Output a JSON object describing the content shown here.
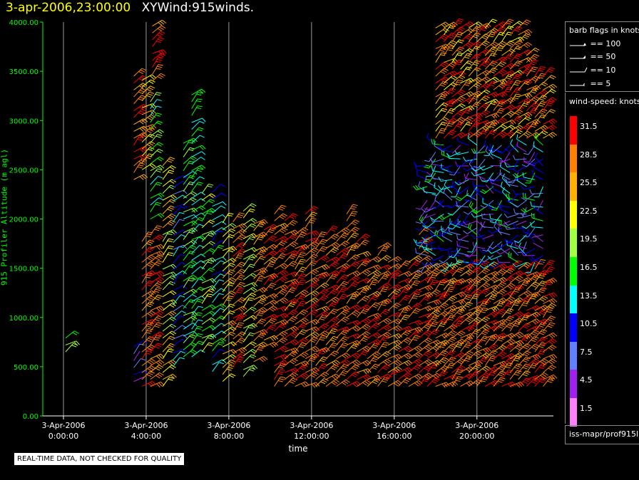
{
  "header": {
    "timestamp": "3-apr-2006,23:00:00",
    "name": "XYWind:915winds."
  },
  "chart_data": {
    "type": "scatter",
    "subtype": "wind-barb time-height",
    "ylabel": "915 Profiler Altitude (m agl)",
    "xlabel": "time",
    "ylim": [
      0,
      4000
    ],
    "y_ticks": [
      "0.00",
      "500.00",
      "1000.00",
      "1500.00",
      "2000.00",
      "2500.00",
      "3000.00",
      "3500.00",
      "4000.00"
    ],
    "x_ticks": [
      {
        "line1": "3-Apr-2006",
        "line2": "0:00:00",
        "hour": 0
      },
      {
        "line1": "3-Apr-2006",
        "line2": "4:00:00",
        "hour": 4
      },
      {
        "line1": "3-Apr-2006",
        "line2": "8:00:00",
        "hour": 8
      },
      {
        "line1": "3-Apr-2006",
        "line2": "12:00:00",
        "hour": 12
      },
      {
        "line1": "3-Apr-2006",
        "line2": "16:00:00",
        "hour": 16
      },
      {
        "line1": "3-Apr-2006",
        "line2": "20:00:00",
        "hour": 20
      }
    ],
    "xlim_hours": [
      -1,
      23.7
    ],
    "grid_vertical": true,
    "observation_profiles": [
      {
        "hour": 0.1,
        "range": [
          650,
          800
        ],
        "speed": 22
      },
      {
        "hour": 3.4,
        "range": [
          350,
          700
        ],
        "speed": 10
      },
      {
        "hour": 3.4,
        "range": [
          2400,
          3450
        ],
        "speed": 32
      },
      {
        "hour": 3.8,
        "range": [
          300,
          1800
        ],
        "speed": 32
      },
      {
        "hour": 3.8,
        "range": [
          2500,
          3450
        ],
        "speed": 28
      },
      {
        "hour": 4.2,
        "range": [
          300,
          1900
        ],
        "speed": 32
      },
      {
        "hour": 4.2,
        "range": [
          2000,
          3200
        ],
        "speed": 20
      },
      {
        "hour": 4.3,
        "range": [
          3400,
          4000
        ],
        "speed": 32
      },
      {
        "hour": 4.8,
        "range": [
          300,
          2600
        ],
        "speed": 26
      },
      {
        "hour": 5.3,
        "range": [
          500,
          2400
        ],
        "speed": 14
      },
      {
        "hour": 5.8,
        "range": [
          600,
          2800
        ],
        "speed": 20
      },
      {
        "hour": 6.2,
        "range": [
          600,
          3300
        ],
        "speed": 18
      },
      {
        "hour": 6.7,
        "range": [
          650,
          2300
        ],
        "speed": 22
      },
      {
        "hour": 7.2,
        "range": [
          450,
          2300
        ],
        "speed": 16
      },
      {
        "hour": 7.7,
        "range": [
          350,
          2000
        ],
        "speed": 26
      },
      {
        "hour": 8.2,
        "range": [
          500,
          2000
        ],
        "speed": 32
      },
      {
        "hour": 8.7,
        "range": [
          400,
          2100
        ],
        "speed": 24
      },
      {
        "hour": 9.2,
        "range": [
          550,
          2000
        ],
        "speed": 30
      },
      {
        "hour": 9.7,
        "range": [
          700,
          1900
        ],
        "speed": 32
      },
      {
        "hour": 10.2,
        "range": [
          300,
          2100
        ],
        "speed": 32
      },
      {
        "hour": 10.7,
        "range": [
          300,
          2000
        ],
        "speed": 32
      },
      {
        "hour": 11.2,
        "range": [
          300,
          1900
        ],
        "speed": 32
      },
      {
        "hour": 11.7,
        "range": [
          300,
          2100
        ],
        "speed": 32
      },
      {
        "hour": 12.2,
        "range": [
          300,
          1800
        ],
        "speed": 32
      },
      {
        "hour": 12.7,
        "range": [
          300,
          1900
        ],
        "speed": 32
      },
      {
        "hour": 13.2,
        "range": [
          300,
          1900
        ],
        "speed": 32
      },
      {
        "hour": 13.7,
        "range": [
          300,
          2100
        ],
        "speed": 32
      },
      {
        "hour": 14.2,
        "range": [
          300,
          1800
        ],
        "speed": 32
      },
      {
        "hour": 14.7,
        "range": [
          300,
          1600
        ],
        "speed": 32
      },
      {
        "hour": 15.2,
        "range": [
          300,
          1700
        ],
        "speed": 32
      },
      {
        "hour": 15.7,
        "range": [
          300,
          1600
        ],
        "speed": 32
      },
      {
        "hour": 16.2,
        "range": [
          300,
          1500
        ],
        "speed": 32
      },
      {
        "hour": 16.7,
        "range": [
          300,
          1600
        ],
        "speed": 32
      },
      {
        "hour": 17.2,
        "range": [
          300,
          1900
        ],
        "speed": 32
      },
      {
        "hour": 17.6,
        "range": [
          300,
          2600
        ],
        "speed": 32
      },
      {
        "hour": 18.0,
        "range": [
          300,
          4000
        ],
        "speed": 32
      },
      {
        "hour": 18.4,
        "range": [
          300,
          4000
        ],
        "speed": 32
      },
      {
        "hour": 18.8,
        "range": [
          300,
          4000
        ],
        "speed": 32
      },
      {
        "hour": 19.2,
        "range": [
          300,
          4000
        ],
        "speed": 32
      },
      {
        "hour": 19.6,
        "range": [
          300,
          4000
        ],
        "speed": 32
      },
      {
        "hour": 20.0,
        "range": [
          300,
          4000
        ],
        "speed": 32
      },
      {
        "hour": 20.4,
        "range": [
          300,
          4000
        ],
        "speed": 32
      },
      {
        "hour": 20.8,
        "range": [
          300,
          4000
        ],
        "speed": 32
      },
      {
        "hour": 21.2,
        "range": [
          300,
          4000
        ],
        "speed": 32
      },
      {
        "hour": 21.6,
        "range": [
          300,
          4000
        ],
        "speed": 32
      },
      {
        "hour": 22.0,
        "range": [
          300,
          4000
        ],
        "speed": 32
      },
      {
        "hour": 22.4,
        "range": [
          300,
          3700
        ],
        "speed": 32
      },
      {
        "hour": 22.8,
        "range": [
          300,
          3500
        ],
        "speed": 32
      },
      {
        "hour": 23.2,
        "range": [
          300,
          3500
        ],
        "speed": 32
      }
    ],
    "notes_observed": "Barbs in the 1500-2800 m band after 18:00 are mostly 5-15 kt (blue/cyan/purple); below ~1500 m barbs are mostly >30 kt (red)"
  },
  "barb_legend": {
    "title": "barb flags in knots",
    "items": [
      {
        "label": "== 100",
        "kind": "pennant"
      },
      {
        "label": "== 50",
        "kind": "flag"
      },
      {
        "label": "== 10",
        "kind": "full"
      },
      {
        "label": "== 5",
        "kind": "half"
      }
    ]
  },
  "speed_legend": {
    "title": "wind-speed: knots",
    "levels": [
      "31.5",
      "28.5",
      "25.5",
      "22.5",
      "19.5",
      "16.5",
      "13.5",
      "10.5",
      "7.5",
      "4.5",
      "1.5"
    ],
    "colors": [
      "#ff0000",
      "#ff8000",
      "#ffb000",
      "#ffff00",
      "#a0ff40",
      "#00ff00",
      "#00ffff",
      "#0000ff",
      "#6080ff",
      "#a020f0",
      "#ff80ff"
    ]
  },
  "source": {
    "label": "iss-mapr/prof915l"
  },
  "notice": "REAL-TIME DATA, NOT CHECKED FOR QUALITY"
}
